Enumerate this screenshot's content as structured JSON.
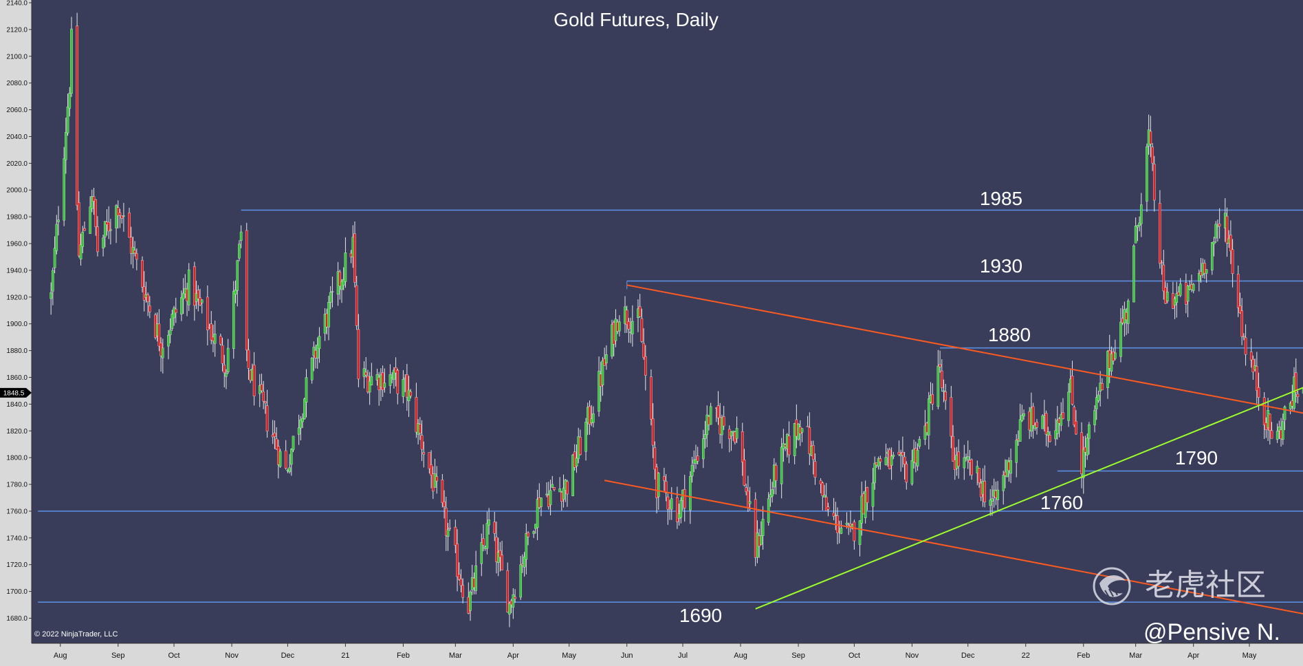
{
  "chart_data": {
    "type": "candlestick",
    "title": "Gold Futures, Daily",
    "y_axis": {
      "min": 1670,
      "max": 2140,
      "ticks": [
        "2140.0",
        "2120.0",
        "2100.0",
        "2080.0",
        "2060.0",
        "2040.0",
        "2020.0",
        "2000.0",
        "1980.0",
        "1960.0",
        "1940.0",
        "1920.0",
        "1900.0",
        "1880.0",
        "1860.0",
        "1840.0",
        "1820.0",
        "1800.0",
        "1780.0",
        "1760.0",
        "1740.0",
        "1720.0",
        "1700.0",
        "1680.0"
      ],
      "last_price": "1848.5"
    },
    "x_axis": {
      "labels": [
        "Aug",
        "Sep",
        "Oct",
        "Nov",
        "Dec",
        "21",
        "Feb",
        "Mar",
        "Apr",
        "May",
        "Jun",
        "Jul",
        "Aug",
        "Sep",
        "Oct",
        "Nov",
        "Dec",
        "22",
        "Feb",
        "Mar",
        "Apr",
        "May"
      ]
    },
    "price_path": [
      [
        "2020-07-27",
        1920
      ],
      [
        "2020-08-06",
        2080
      ],
      [
        "2020-08-07",
        2110
      ],
      [
        "2020-08-11",
        1950
      ],
      [
        "2020-08-18",
        2000
      ],
      [
        "2020-08-21",
        1955
      ],
      [
        "2020-09-01",
        1990
      ],
      [
        "2020-09-24",
        1885
      ],
      [
        "2020-10-09",
        1930
      ],
      [
        "2020-10-29",
        1870
      ],
      [
        "2020-11-06",
        1965
      ],
      [
        "2020-11-09",
        1870
      ],
      [
        "2020-11-30",
        1790
      ],
      [
        "2020-12-18",
        1890
      ],
      [
        "2021-01-05",
        1960
      ],
      [
        "2021-01-08",
        1860
      ],
      [
        "2021-01-25",
        1860
      ],
      [
        "2021-02-03",
        1850
      ],
      [
        "2021-03-08",
        1690
      ],
      [
        "2021-03-19",
        1750
      ],
      [
        "2021-03-30",
        1690
      ],
      [
        "2021-04-15",
        1770
      ],
      [
        "2021-04-30",
        1780
      ],
      [
        "2021-05-14",
        1840
      ],
      [
        "2021-05-28",
        1910
      ],
      [
        "2021-06-08",
        1900
      ],
      [
        "2021-06-17",
        1780
      ],
      [
        "2021-06-29",
        1760
      ],
      [
        "2021-07-15",
        1830
      ],
      [
        "2021-07-30",
        1820
      ],
      [
        "2021-08-09",
        1730
      ],
      [
        "2021-08-20",
        1790
      ],
      [
        "2021-09-03",
        1830
      ],
      [
        "2021-09-16",
        1760
      ],
      [
        "2021-09-29",
        1740
      ],
      [
        "2021-10-14",
        1800
      ],
      [
        "2021-10-29",
        1790
      ],
      [
        "2021-11-08",
        1820
      ],
      [
        "2021-11-15",
        1870
      ],
      [
        "2021-11-23",
        1800
      ],
      [
        "2021-12-03",
        1790
      ],
      [
        "2021-12-15",
        1765
      ],
      [
        "2021-12-31",
        1830
      ],
      [
        "2022-01-14",
        1820
      ],
      [
        "2022-01-25",
        1850
      ],
      [
        "2022-01-31",
        1795
      ],
      [
        "2022-02-14",
        1870
      ],
      [
        "2022-02-24",
        1910
      ],
      [
        "2022-03-08",
        2040
      ],
      [
        "2022-03-16",
        1920
      ],
      [
        "2022-03-29",
        1920
      ],
      [
        "2022-04-08",
        1950
      ],
      [
        "2022-04-18",
        1980
      ],
      [
        "2022-04-28",
        1890
      ],
      [
        "2022-05-12",
        1820
      ],
      [
        "2022-05-16",
        1815
      ],
      [
        "2022-05-25",
        1850
      ]
    ],
    "horizontal_levels": [
      {
        "value": 1985,
        "label": "1985",
        "start": "2020-11-06"
      },
      {
        "value": 1932,
        "label": "1930",
        "start": "2021-06-01"
      },
      {
        "value": 1882,
        "label": "1880",
        "start": "2021-11-16"
      },
      {
        "value": 1790,
        "label": "1790",
        "start": "2022-01-18"
      },
      {
        "value": 1760,
        "label": "1760",
        "start": "2020-07-20"
      },
      {
        "value": 1692,
        "label": "1690",
        "start": "2020-07-20"
      }
    ],
    "trendlines": [
      {
        "color": "#ff5a1f",
        "from": [
          "2021-06-01",
          1929
        ],
        "to": [
          "2022-05-31",
          1833
        ]
      },
      {
        "color": "#ff5a1f",
        "from": [
          "2021-05-20",
          1783
        ],
        "to": [
          "2022-05-31",
          1683
        ]
      },
      {
        "color": "#9cff2a",
        "from": [
          "2021-08-09",
          1687
        ],
        "to": [
          "2022-05-31",
          1853
        ]
      }
    ],
    "colors": {
      "background": "#3a3d5a",
      "up": "#34c734",
      "down": "#e02020",
      "level": "#5b8dde",
      "grid": "none"
    },
    "copyright": "© 2022 NinjaTrader, LLC",
    "watermark_text": "老虎社区",
    "author": "@Pensive N."
  }
}
